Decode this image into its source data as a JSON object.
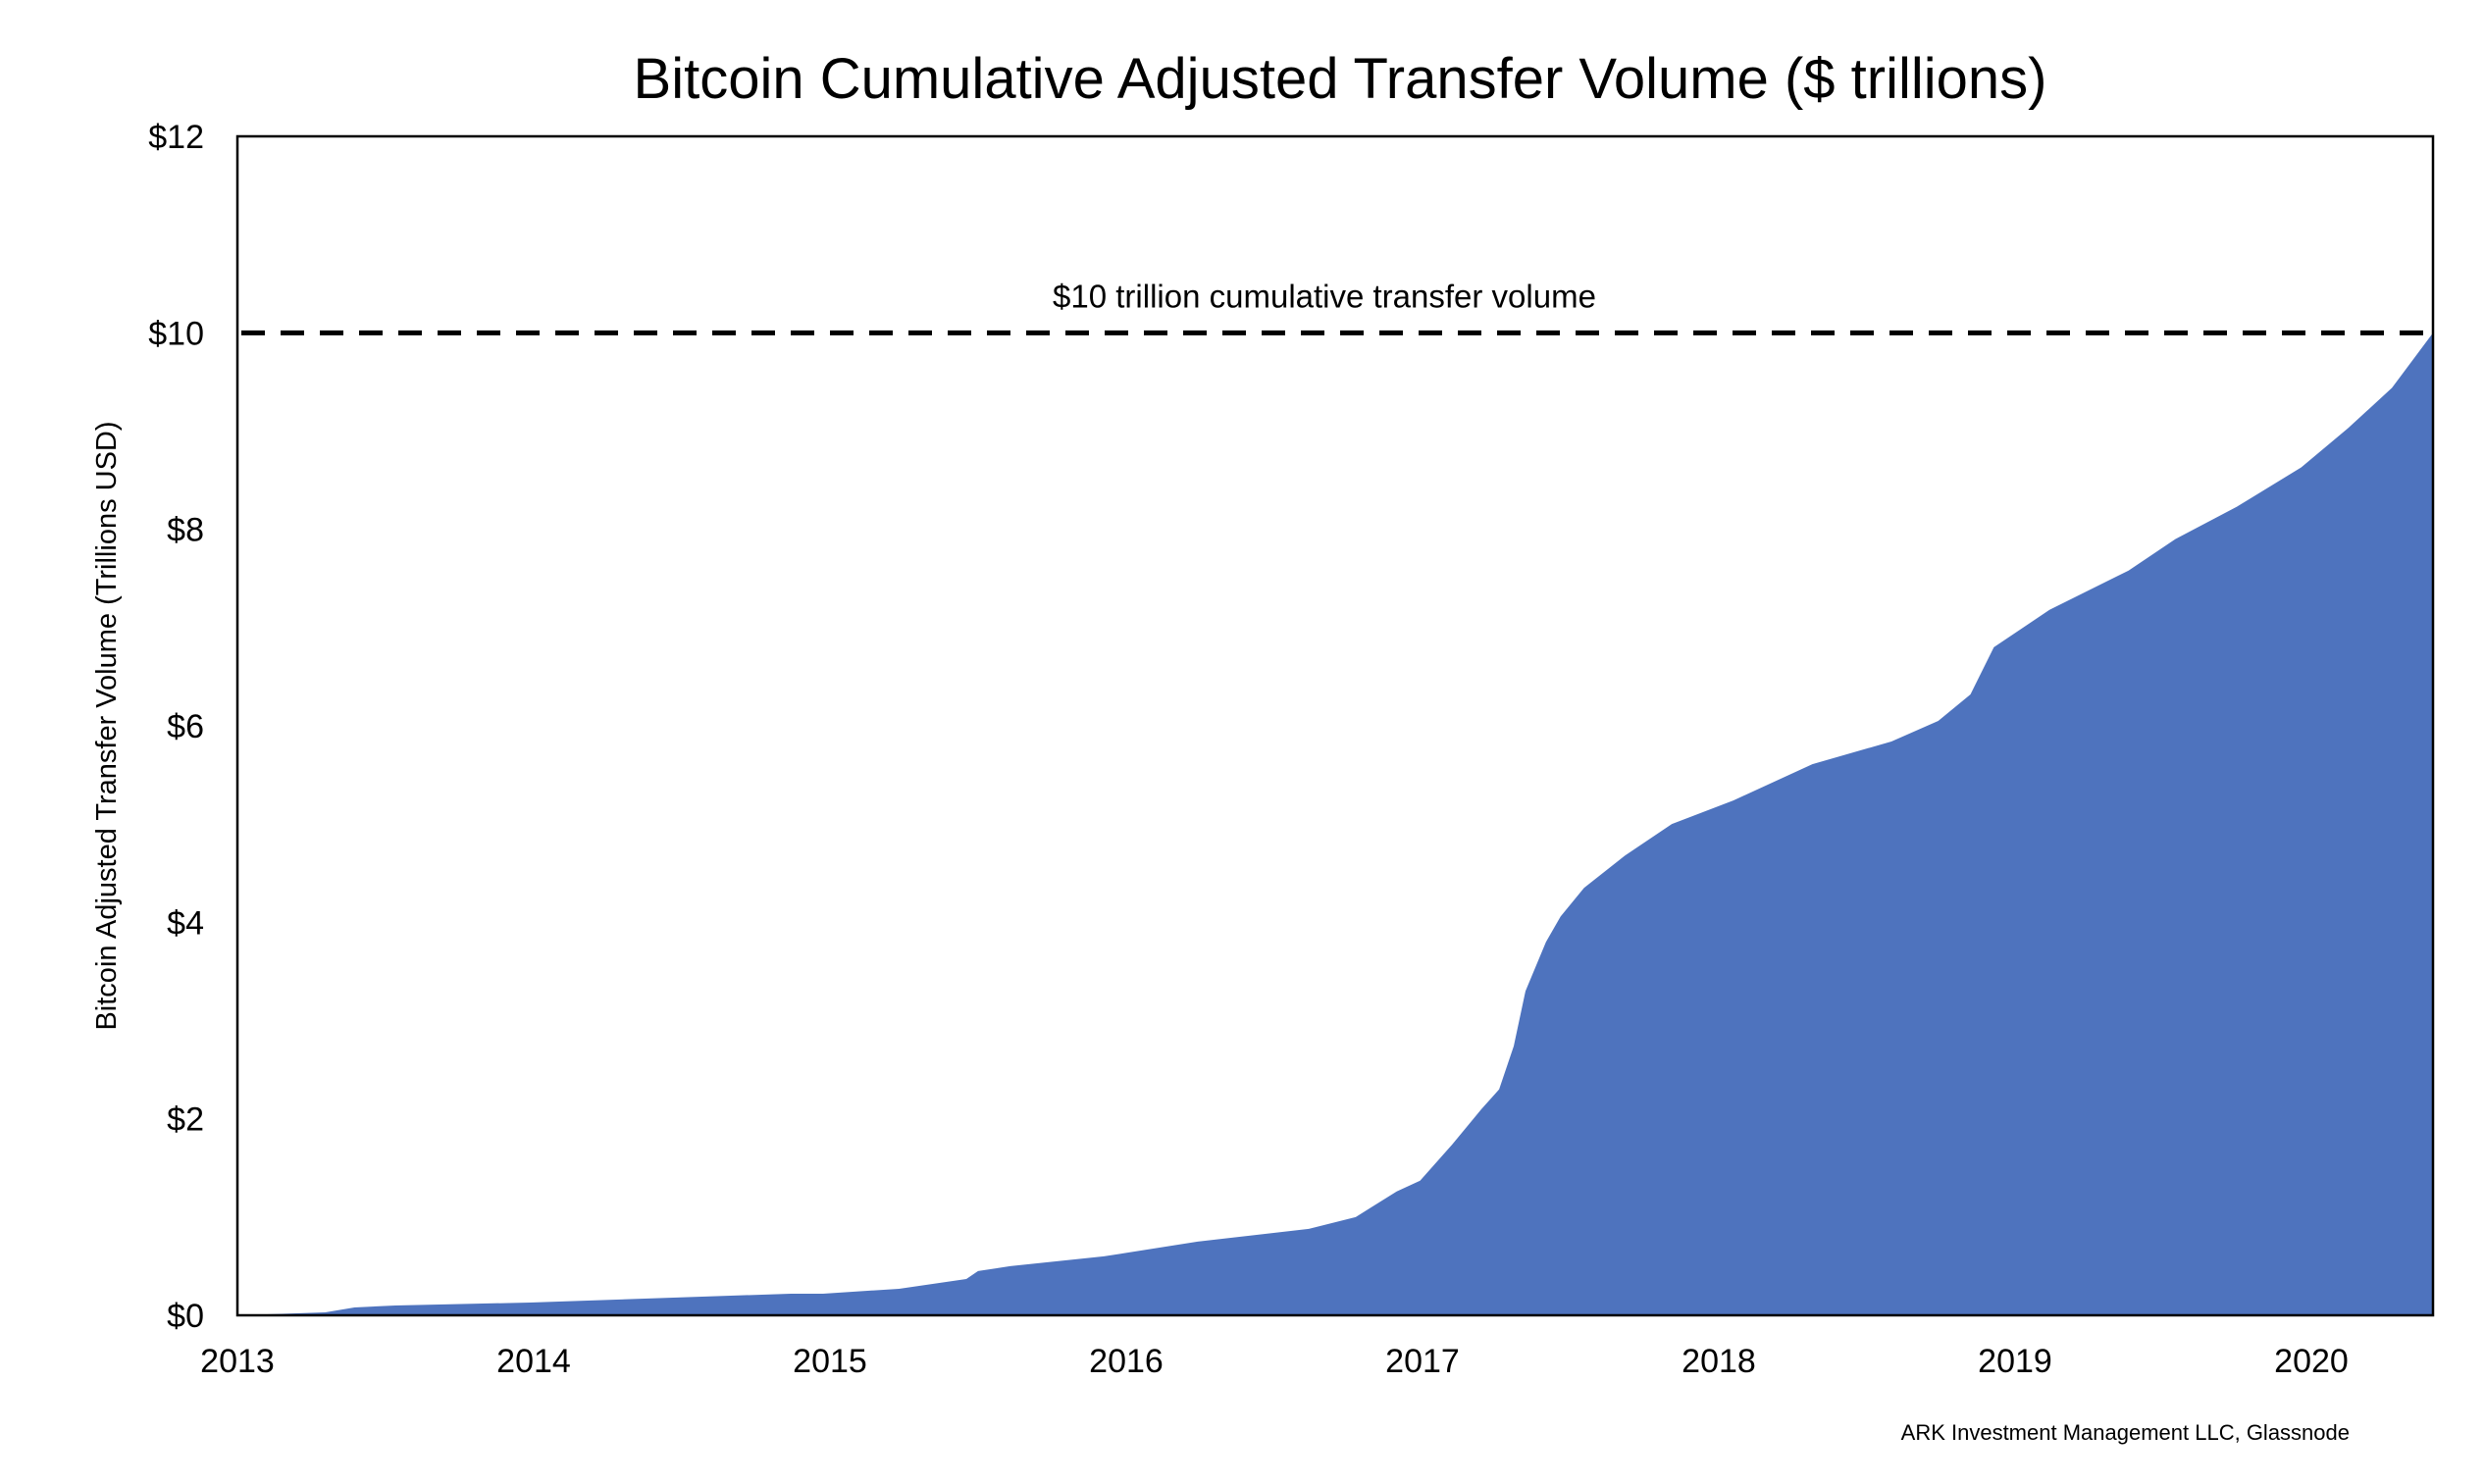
{
  "chart_data": {
    "type": "area",
    "title": "Bitcoin Cumulative Adjusted Transfer Volume ($ trillions)",
    "xlabel": "",
    "ylabel": "Bitcoin Adjusted Transfer Volume (Trillions USD)",
    "xlim": [
      2013,
      2020.5
    ],
    "ylim": [
      0,
      12
    ],
    "x_ticks": [
      "2013",
      "2014",
      "2015",
      "2016",
      "2017",
      "2018",
      "2019",
      "2020"
    ],
    "y_ticks": [
      "$0",
      "$2",
      "$4",
      "$6",
      "$8",
      "$10",
      "$12"
    ],
    "grid": false,
    "fill_color": "#4E73BE",
    "reference_line": {
      "value": 10,
      "label": "$10 trillion cumulative transfer volume",
      "style": "dashed"
    },
    "source": "ARK Investment Management LLC, Glassnode",
    "x": [
      2013.0,
      2013.3,
      2013.4,
      2013.54,
      2014.0,
      2014.89,
      2015.0,
      2015.26,
      2015.49,
      2015.53,
      2015.64,
      2015.96,
      2016.28,
      2016.66,
      2016.82,
      2016.96,
      2017.04,
      2017.15,
      2017.25,
      2017.31,
      2017.36,
      2017.4,
      2017.47,
      2017.52,
      2017.6,
      2017.74,
      2017.9,
      2018.11,
      2018.38,
      2018.65,
      2018.81,
      2018.92,
      2019.0,
      2019.19,
      2019.46,
      2019.62,
      2019.83,
      2020.05,
      2020.21,
      2020.36,
      2020.5
    ],
    "y": [
      0,
      0.03,
      0.08,
      0.1,
      0.13,
      0.22,
      0.22,
      0.27,
      0.37,
      0.45,
      0.5,
      0.6,
      0.75,
      0.88,
      1.0,
      1.26,
      1.37,
      1.74,
      2.1,
      2.3,
      2.74,
      3.3,
      3.8,
      4.06,
      4.35,
      4.68,
      5.0,
      5.24,
      5.61,
      5.84,
      6.05,
      6.32,
      6.8,
      7.18,
      7.58,
      7.9,
      8.23,
      8.63,
      9.03,
      9.44,
      10.0
    ]
  }
}
